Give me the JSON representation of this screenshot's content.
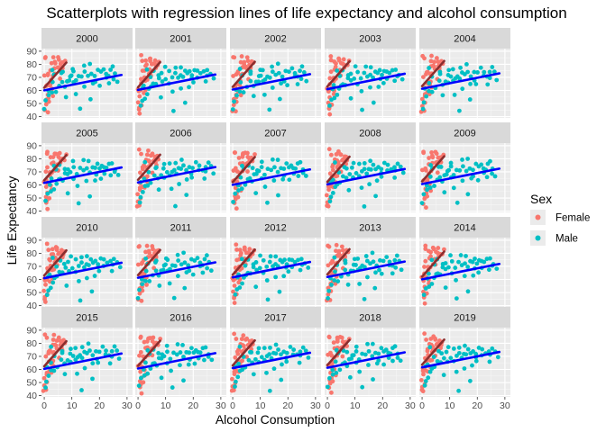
{
  "chart_data": {
    "type": "scatter",
    "title": "Scatterplots with regression lines of life expectancy and alcohol consumption",
    "xlabel": "Alcohol Consumption",
    "ylabel": "Life Expectancy",
    "xlim": [
      -1,
      32
    ],
    "ylim": [
      39,
      92
    ],
    "x_ticks": [
      0,
      10,
      20,
      30
    ],
    "y_ticks": [
      40,
      50,
      60,
      70,
      80,
      90
    ],
    "facets": [
      "2000",
      "2001",
      "2002",
      "2003",
      "2004",
      "2005",
      "2006",
      "2007",
      "2008",
      "2009",
      "2010",
      "2011",
      "2012",
      "2013",
      "2014",
      "2015",
      "2016",
      "2017",
      "2018",
      "2019"
    ],
    "facet_columns": 5,
    "legend": {
      "title": "Sex",
      "position": "right",
      "entries": [
        {
          "label": "Female",
          "color": "#F8766D"
        },
        {
          "label": "Male",
          "color": "#00BFC4"
        }
      ]
    },
    "regression_lines": {
      "Female": {
        "color": "#8B2E2E",
        "approx_intercept": 63,
        "approx_slope": 2.4,
        "x_range": [
          0,
          8
        ]
      },
      "Male": {
        "color": "#0000FF",
        "approx_intercept": 61,
        "approx_slope": 0.42,
        "x_range": [
          0,
          28
        ]
      }
    },
    "series": [
      {
        "name": "Female",
        "color": "#F8766D",
        "points": [
          [
            0.2,
            45
          ],
          [
            0.5,
            48
          ],
          [
            0.3,
            52
          ],
          [
            1,
            55
          ],
          [
            0.8,
            58
          ],
          [
            1.5,
            60
          ],
          [
            0.4,
            62
          ],
          [
            2,
            63
          ],
          [
            1.2,
            65
          ],
          [
            2.5,
            66
          ],
          [
            3,
            68
          ],
          [
            0.6,
            70
          ],
          [
            1.8,
            71
          ],
          [
            3.5,
            72
          ],
          [
            4,
            74
          ],
          [
            2.2,
            75
          ],
          [
            5,
            76
          ],
          [
            4.5,
            77
          ],
          [
            3.2,
            78
          ],
          [
            6,
            79
          ],
          [
            5.5,
            80
          ],
          [
            7,
            80
          ],
          [
            6.5,
            81
          ],
          [
            2.8,
            82
          ],
          [
            4.2,
            83
          ],
          [
            5.8,
            83
          ],
          [
            1,
            84
          ],
          [
            3.8,
            85
          ],
          [
            0.7,
            86
          ],
          [
            6.8,
            78
          ],
          [
            7.5,
            82
          ],
          [
            1.4,
            50
          ],
          [
            0.9,
            43
          ],
          [
            2.6,
            57
          ],
          [
            5.2,
            70
          ],
          [
            3.6,
            80
          ],
          [
            4.8,
            84
          ],
          [
            2.9,
            61
          ],
          [
            1.6,
            74
          ],
          [
            6.2,
            76
          ]
        ]
      },
      {
        "name": "Male",
        "color": "#00BFC4",
        "points": [
          [
            0.5,
            47
          ],
          [
            1,
            52
          ],
          [
            2,
            55
          ],
          [
            3,
            58
          ],
          [
            1.5,
            61
          ],
          [
            4,
            60
          ],
          [
            5,
            63
          ],
          [
            2.5,
            65
          ],
          [
            6,
            66
          ],
          [
            7,
            64
          ],
          [
            8,
            68
          ],
          [
            9,
            67
          ],
          [
            10,
            70
          ],
          [
            11,
            66
          ],
          [
            12,
            69
          ],
          [
            13,
            72
          ],
          [
            14,
            70
          ],
          [
            15,
            73
          ],
          [
            16,
            71
          ],
          [
            17,
            74
          ],
          [
            18,
            72
          ],
          [
            19,
            75
          ],
          [
            20,
            73
          ],
          [
            21,
            76
          ],
          [
            22,
            74
          ],
          [
            23,
            72
          ],
          [
            24,
            75
          ],
          [
            25,
            77
          ],
          [
            26,
            73
          ],
          [
            27,
            68
          ],
          [
            12,
            58
          ],
          [
            15,
            62
          ],
          [
            18,
            64
          ],
          [
            8,
            55
          ],
          [
            20,
            65
          ],
          [
            10,
            77
          ],
          [
            14,
            78
          ],
          [
            16,
            79
          ],
          [
            22,
            70
          ],
          [
            9,
            72
          ],
          [
            6,
            74
          ],
          [
            13,
            45
          ],
          [
            17,
            52
          ],
          [
            11,
            75
          ],
          [
            19,
            68
          ],
          [
            24,
            66
          ],
          [
            4,
            71
          ],
          [
            7,
            73
          ],
          [
            3,
            76
          ],
          [
            25,
            70
          ]
        ]
      }
    ]
  }
}
